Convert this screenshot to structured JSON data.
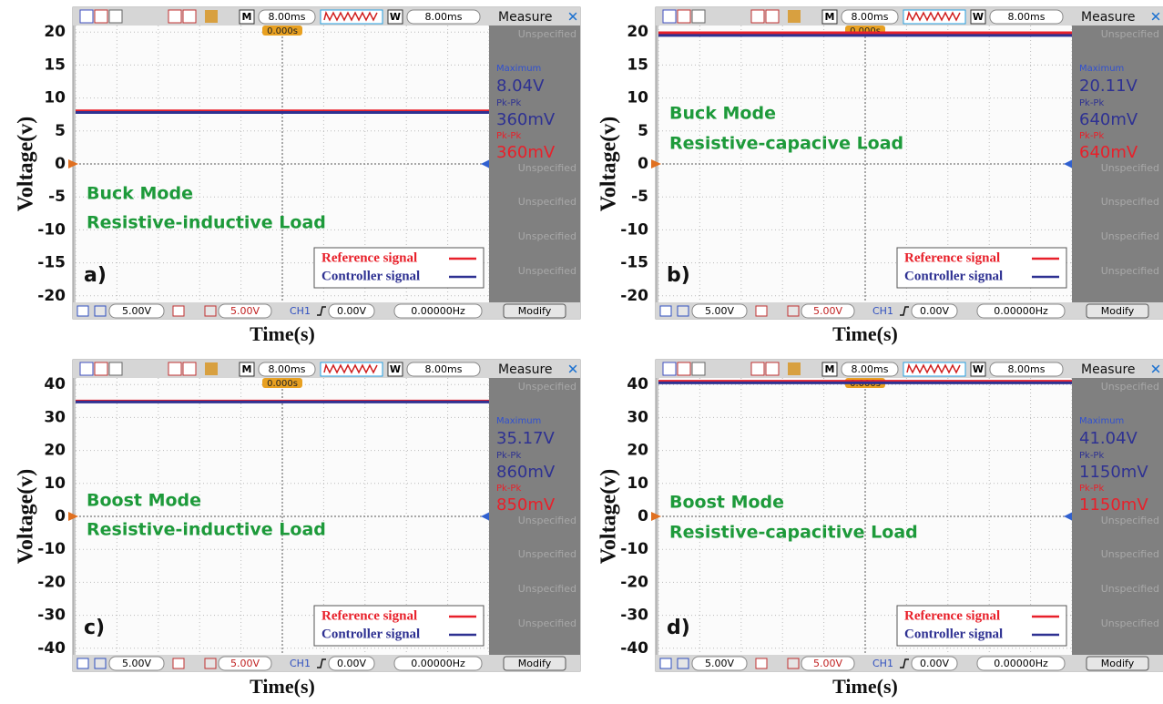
{
  "chart_data": [
    {
      "type": "line",
      "panel_label": "a)",
      "y_label": "Voltage(v)",
      "x_label": "Time(s)",
      "annotations": [
        "Buck Mode",
        "Resistive-inductive Load"
      ],
      "ylim": [
        -21,
        21
      ],
      "yticks": [
        20,
        15,
        10,
        5,
        0,
        -5,
        -10,
        -15,
        -20
      ],
      "series": [
        {
          "name": "Reference signal",
          "color": "#e8202a",
          "values": [
            8.04,
            8.04
          ]
        },
        {
          "name": "Controller signal",
          "color": "#2e3192",
          "values": [
            7.8,
            7.8
          ]
        }
      ],
      "scope": {
        "m_label": "M",
        "timebase": "8.00ms",
        "w_label": "W",
        "window": "8.00ms",
        "trigger_time": "0.000s",
        "measure_title": "Measure",
        "maximum_label": "Maximum",
        "maximum": "8.04V",
        "pkpk_label_1": "Pk-Pk",
        "pkpk_1": "360mV",
        "pkpk_label_2": "Pk-Pk",
        "pkpk_2": "360mV",
        "unspecified": [
          "Unspecified",
          "Unspecified",
          "Unspecified",
          "Unspecified",
          "Unspecified"
        ],
        "ch1_scale": "5.00V",
        "ch2_scale": "5.00V",
        "trigger_source": "CH1",
        "trigger_level": "0.00V",
        "frequency": "0.00000Hz",
        "modify": "Modify"
      }
    },
    {
      "type": "line",
      "panel_label": "b)",
      "y_label": "Voltage(v)",
      "x_label": "Time(s)",
      "annotations": [
        "Buck Mode",
        "Resistive-capacive Load"
      ],
      "ylim": [
        -21,
        21
      ],
      "yticks": [
        20,
        15,
        10,
        5,
        0,
        -5,
        -10,
        -15,
        -20
      ],
      "series": [
        {
          "name": "Reference signal",
          "color": "#e8202a",
          "values": [
            19.9,
            19.9
          ]
        },
        {
          "name": "Controller signal",
          "color": "#2e3192",
          "values": [
            19.5,
            19.5
          ]
        }
      ],
      "scope": {
        "m_label": "M",
        "timebase": "8.00ms",
        "w_label": "W",
        "window": "8.00ms",
        "trigger_time": "0.000s",
        "measure_title": "Measure",
        "maximum_label": "Maximum",
        "maximum": "20.11V",
        "pkpk_label_1": "Pk-Pk",
        "pkpk_1": "640mV",
        "pkpk_label_2": "Pk-Pk",
        "pkpk_2": "640mV",
        "unspecified": [
          "Unspecified",
          "Unspecified",
          "Unspecified",
          "Unspecified",
          "Unspecified"
        ],
        "ch1_scale": "5.00V",
        "ch2_scale": "5.00V",
        "trigger_source": "CH1",
        "trigger_level": "0.00V",
        "frequency": "0.00000Hz",
        "modify": "Modify"
      }
    },
    {
      "type": "line",
      "panel_label": "c)",
      "y_label": "Voltage(v)",
      "x_label": "Time(s)",
      "annotations": [
        "Boost Mode",
        "Resistive-inductive Load"
      ],
      "ylim": [
        -42,
        42
      ],
      "yticks": [
        40,
        30,
        20,
        10,
        0,
        -10,
        -20,
        -30,
        -40
      ],
      "series": [
        {
          "name": "Reference signal",
          "color": "#e8202a",
          "values": [
            35.0,
            35.0
          ]
        },
        {
          "name": "Controller signal",
          "color": "#2e3192",
          "values": [
            34.7,
            34.7
          ]
        }
      ],
      "scope": {
        "m_label": "M",
        "timebase": "8.00ms",
        "w_label": "W",
        "window": "8.00ms",
        "trigger_time": "0.000s",
        "measure_title": "Measure",
        "maximum_label": "Maximum",
        "maximum": "35.17V",
        "pkpk_label_1": "Pk-Pk",
        "pkpk_1": "860mV",
        "pkpk_label_2": "Pk-Pk",
        "pkpk_2": "850mV",
        "unspecified": [
          "Unspecified",
          "Unspecified",
          "Unspecified",
          "Unspecified",
          "Unspecified"
        ],
        "ch1_scale": "5.00V",
        "ch2_scale": "5.00V",
        "trigger_source": "CH1",
        "trigger_level": "0.00V",
        "frequency": "0.00000Hz",
        "modify": "Modify"
      }
    },
    {
      "type": "line",
      "panel_label": "d)",
      "y_label": "Voltage(v)",
      "x_label": "Time(s)",
      "annotations": [
        "Boost Mode",
        "Resistive-capacitive Load"
      ],
      "ylim": [
        -42,
        42
      ],
      "yticks": [
        40,
        30,
        20,
        10,
        0,
        -10,
        -20,
        -30,
        -40
      ],
      "series": [
        {
          "name": "Reference signal",
          "color": "#e8202a",
          "values": [
            41.0,
            41.0
          ]
        },
        {
          "name": "Controller signal",
          "color": "#2e3192",
          "values": [
            40.5,
            40.5
          ]
        }
      ],
      "scope": {
        "m_label": "M",
        "timebase": "8.00ms",
        "w_label": "W",
        "window": "8.00ms",
        "trigger_time": "0.000s",
        "measure_title": "Measure",
        "maximum_label": "Maximum",
        "maximum": "41.04V",
        "pkpk_label_1": "Pk-Pk",
        "pkpk_1": "1150mV",
        "pkpk_label_2": "Pk-Pk",
        "pkpk_2": "1150mV",
        "unspecified": [
          "Unspecified",
          "Unspecified",
          "Unspecified",
          "Unspecified",
          "Unspecified"
        ],
        "ch1_scale": "5.00V",
        "ch2_scale": "5.00V",
        "trigger_source": "CH1",
        "trigger_level": "0.00V",
        "frequency": "0.00000Hz",
        "modify": "Modify"
      }
    }
  ]
}
